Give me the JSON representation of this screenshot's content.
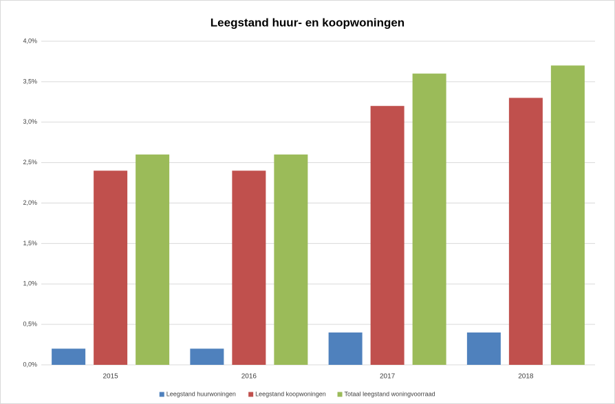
{
  "chart_data": {
    "type": "bar",
    "title": "Leegstand huur- en koopwoningen",
    "categories": [
      "2015",
      "2016",
      "2017",
      "2018"
    ],
    "series": [
      {
        "name": "Leegstand huurwoningen",
        "color": "#4f81bd",
        "values": [
          0.2,
          0.2,
          0.4,
          0.4
        ]
      },
      {
        "name": "Leegstand koopwoningen",
        "color": "#c0504d",
        "values": [
          2.4,
          2.4,
          3.2,
          3.3
        ]
      },
      {
        "name": "Totaal leegstand woningvoorraad",
        "color": "#9bbb59",
        "values": [
          2.6,
          2.6,
          3.6,
          3.7
        ]
      }
    ],
    "ylim": [
      0,
      4
    ],
    "yticks": [
      {
        "value": 0,
        "label": "0,0%"
      },
      {
        "value": 0.5,
        "label": "0,5%"
      },
      {
        "value": 1,
        "label": "1,0%"
      },
      {
        "value": 1.5,
        "label": "1,5%"
      },
      {
        "value": 2,
        "label": "2,0%"
      },
      {
        "value": 2.5,
        "label": "2,5%"
      },
      {
        "value": 3,
        "label": "3,0%"
      },
      {
        "value": 3.5,
        "label": "3,5%"
      },
      {
        "value": 4,
        "label": "4,0%"
      }
    ],
    "grid": true,
    "legend": "bottom"
  }
}
